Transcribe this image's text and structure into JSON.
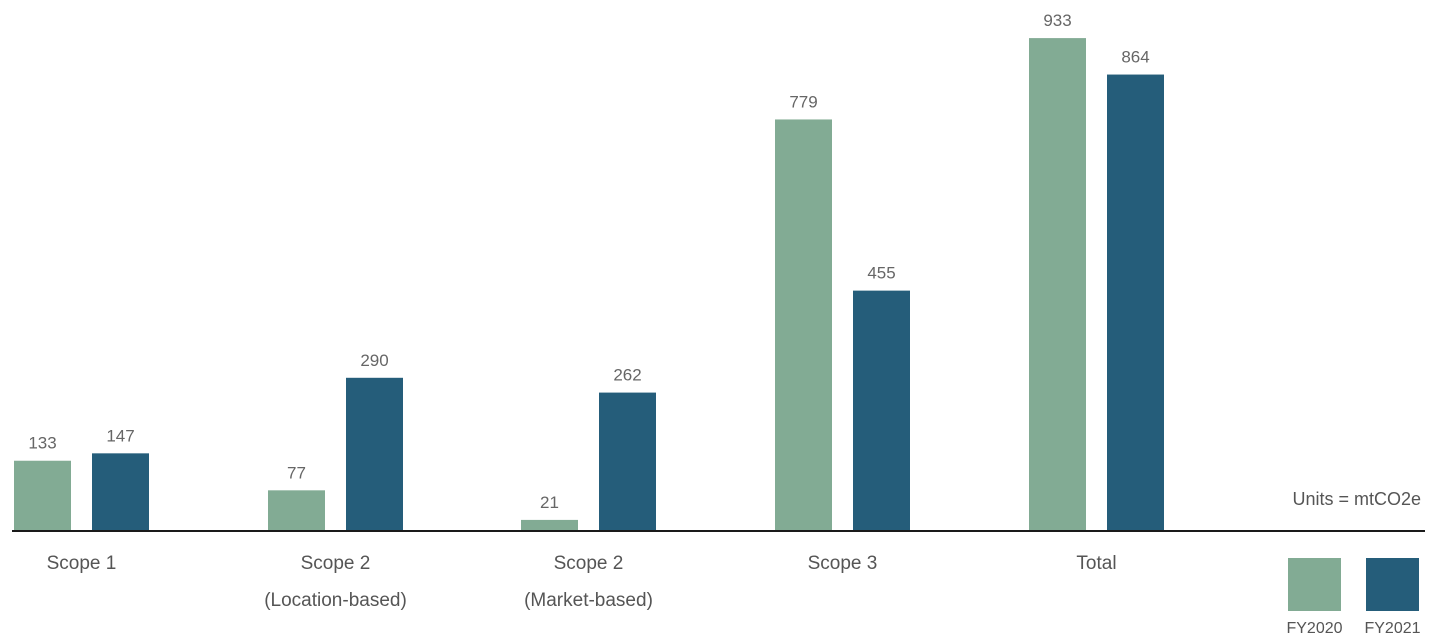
{
  "chart_data": {
    "type": "bar",
    "categories": [
      [
        "Scope 1"
      ],
      [
        "Scope 2",
        "(Location-based)"
      ],
      [
        "Scope 2",
        "(Market-based)"
      ],
      [
        "Scope 3"
      ],
      [
        "Total"
      ]
    ],
    "series": [
      {
        "name": "FY2020",
        "color": "#82ab94",
        "values": [
          133,
          77,
          21,
          779,
          933
        ]
      },
      {
        "name": "FY2021",
        "color": "#255d7a",
        "values": [
          147,
          290,
          262,
          455,
          864
        ]
      }
    ],
    "units_note": "Units = mtCO2e",
    "ylim": [
      0,
      1000
    ],
    "grid": false,
    "legend_position": "bottom-right"
  }
}
